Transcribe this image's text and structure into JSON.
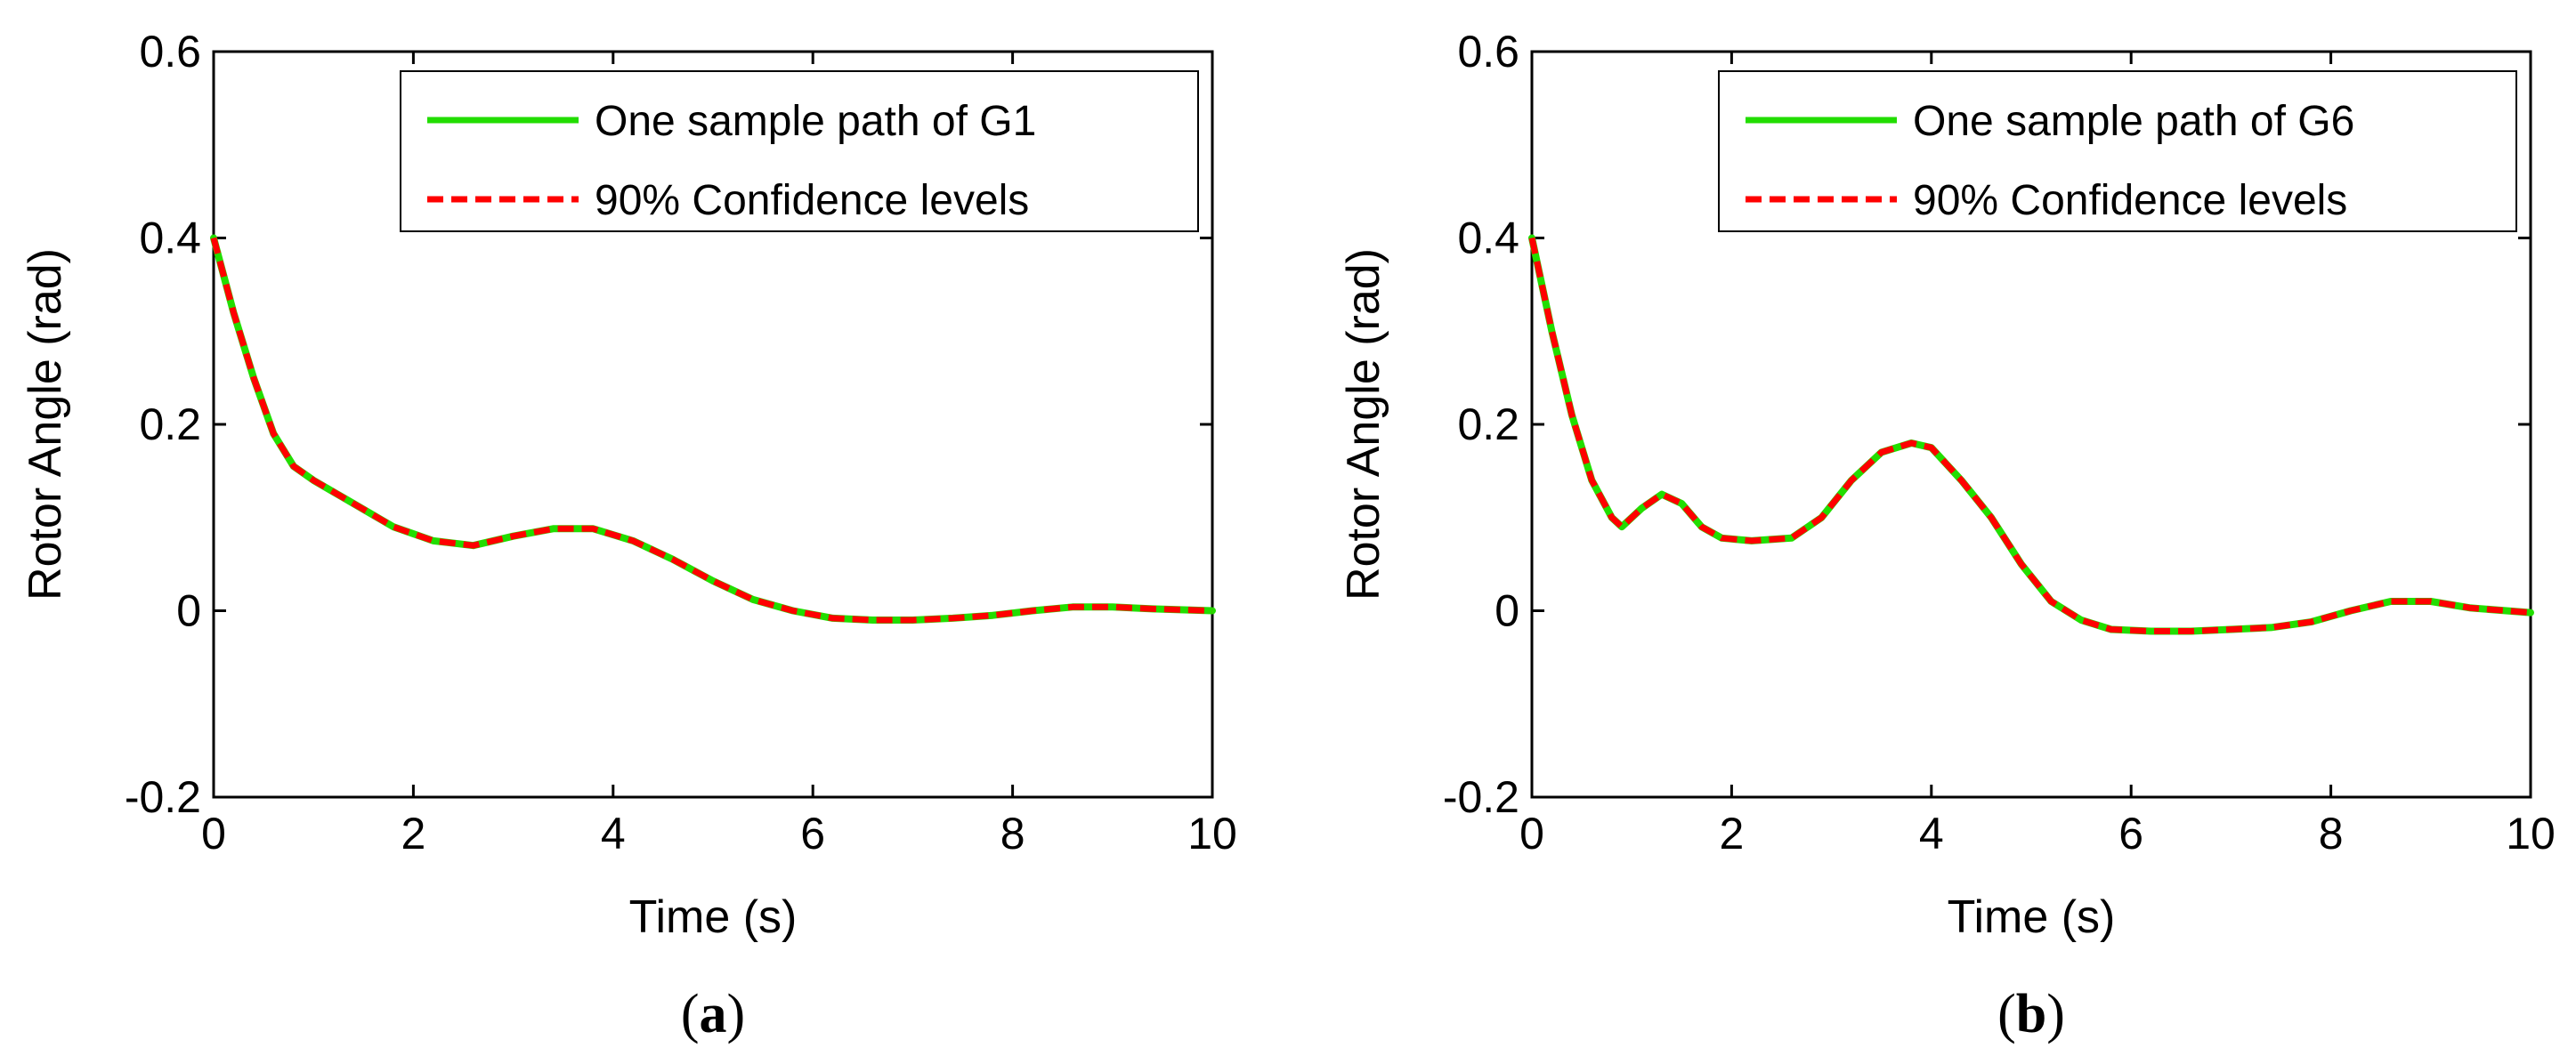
{
  "chart_data": [
    {
      "type": "line",
      "panel_label": "a",
      "title": "",
      "xlabel": "Time (s)",
      "ylabel": "Rotor Angle (rad)",
      "xlim": [
        0,
        10
      ],
      "ylim": [
        -0.2,
        0.6
      ],
      "xticks": [
        "0",
        "2",
        "4",
        "6",
        "8",
        "10"
      ],
      "yticks": [
        "0.6",
        "0.4",
        "0.2",
        "0",
        "-0.2"
      ],
      "grid": false,
      "legend_position": "top-right",
      "series": [
        {
          "name": "One sample path of G1",
          "color": "#22dd00",
          "style": "solid",
          "x": [
            0,
            0.2,
            0.4,
            0.6,
            0.8,
            1.0,
            1.4,
            1.8,
            2.2,
            2.6,
            3.0,
            3.4,
            3.8,
            4.2,
            4.6,
            5.0,
            5.4,
            5.8,
            6.2,
            6.6,
            7.0,
            7.4,
            7.8,
            8.2,
            8.6,
            9.0,
            9.4,
            10.0
          ],
          "y": [
            0.4,
            0.32,
            0.25,
            0.19,
            0.155,
            0.14,
            0.115,
            0.09,
            0.075,
            0.07,
            0.08,
            0.088,
            0.088,
            0.075,
            0.055,
            0.032,
            0.012,
            0.0,
            -0.008,
            -0.01,
            -0.01,
            -0.008,
            -0.005,
            0.0,
            0.004,
            0.004,
            0.002,
            0.0
          ]
        },
        {
          "name": "90% Confidence levels",
          "color": "#ff0000",
          "style": "dashed",
          "x": [
            0,
            0.2,
            0.4,
            0.6,
            0.8,
            1.0,
            1.4,
            1.8,
            2.2,
            2.6,
            3.0,
            3.4,
            3.8,
            4.2,
            4.6,
            5.0,
            5.4,
            5.8,
            6.2,
            6.6,
            7.0,
            7.4,
            7.8,
            8.2,
            8.6,
            9.0,
            9.4,
            10.0
          ],
          "y": [
            0.4,
            0.32,
            0.25,
            0.19,
            0.155,
            0.14,
            0.115,
            0.09,
            0.075,
            0.07,
            0.08,
            0.088,
            0.088,
            0.075,
            0.055,
            0.032,
            0.012,
            0.0,
            -0.008,
            -0.01,
            -0.01,
            -0.008,
            -0.005,
            0.0,
            0.004,
            0.004,
            0.002,
            0.0
          ]
        }
      ]
    },
    {
      "type": "line",
      "panel_label": "b",
      "title": "",
      "xlabel": "Time (s)",
      "ylabel": "Rotor Angle (rad)",
      "xlim": [
        0,
        10
      ],
      "ylim": [
        -0.2,
        0.6
      ],
      "xticks": [
        "0",
        "2",
        "4",
        "6",
        "8",
        "10"
      ],
      "yticks": [
        "0.6",
        "0.4",
        "0.2",
        "0",
        "-0.2"
      ],
      "grid": false,
      "legend_position": "top-right",
      "series": [
        {
          "name": "One sample path of G6",
          "color": "#22dd00",
          "style": "solid",
          "x": [
            0,
            0.2,
            0.4,
            0.6,
            0.8,
            0.9,
            1.1,
            1.3,
            1.5,
            1.7,
            1.9,
            2.2,
            2.6,
            2.9,
            3.2,
            3.5,
            3.8,
            4.0,
            4.3,
            4.6,
            4.9,
            5.2,
            5.5,
            5.8,
            6.2,
            6.6,
            7.0,
            7.4,
            7.8,
            8.2,
            8.6,
            9.0,
            9.4,
            10.0
          ],
          "y": [
            0.4,
            0.3,
            0.21,
            0.14,
            0.1,
            0.09,
            0.11,
            0.125,
            0.115,
            0.09,
            0.078,
            0.075,
            0.078,
            0.1,
            0.14,
            0.17,
            0.18,
            0.175,
            0.14,
            0.1,
            0.05,
            0.01,
            -0.01,
            -0.02,
            -0.022,
            -0.022,
            -0.02,
            -0.018,
            -0.012,
            0.0,
            0.01,
            0.01,
            0.003,
            -0.002
          ]
        },
        {
          "name": "90% Confidence levels",
          "color": "#ff0000",
          "style": "dashed",
          "x": [
            0,
            0.2,
            0.4,
            0.6,
            0.8,
            0.9,
            1.1,
            1.3,
            1.5,
            1.7,
            1.9,
            2.2,
            2.6,
            2.9,
            3.2,
            3.5,
            3.8,
            4.0,
            4.3,
            4.6,
            4.9,
            5.2,
            5.5,
            5.8,
            6.2,
            6.6,
            7.0,
            7.4,
            7.8,
            8.2,
            8.6,
            9.0,
            9.4,
            10.0
          ],
          "y": [
            0.4,
            0.3,
            0.21,
            0.14,
            0.1,
            0.09,
            0.11,
            0.125,
            0.115,
            0.09,
            0.078,
            0.075,
            0.078,
            0.1,
            0.14,
            0.17,
            0.18,
            0.175,
            0.14,
            0.1,
            0.05,
            0.01,
            -0.01,
            -0.02,
            -0.022,
            -0.022,
            -0.02,
            -0.018,
            -0.012,
            0.0,
            0.01,
            0.01,
            0.003,
            -0.002
          ]
        }
      ]
    }
  ]
}
